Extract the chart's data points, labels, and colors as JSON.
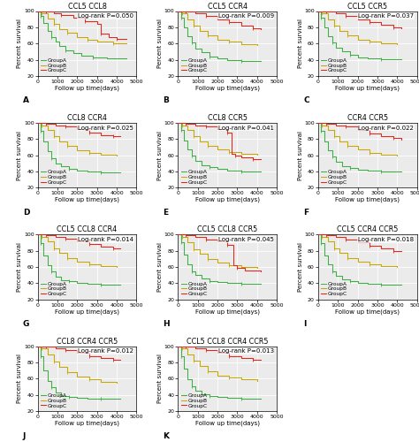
{
  "panels": [
    {
      "title": "CCL5 CCL8",
      "label": "A",
      "pval": "Log-rank P=0.050"
    },
    {
      "title": "CCL5 CCR4",
      "label": "B",
      "pval": "Log-rank P=0.009"
    },
    {
      "title": "CCL5 CCR5",
      "label": "C",
      "pval": "Log-rank P=0.037"
    },
    {
      "title": "CCL8 CCR4",
      "label": "D",
      "pval": "Log-rank P=0.025"
    },
    {
      "title": "CCL8 CCR5",
      "label": "E",
      "pval": "Log-rank P=0.041"
    },
    {
      "title": "CCR4 CCR5",
      "label": "F",
      "pval": "Log-rank P=0.022"
    },
    {
      "title": "CCL5 CCL8 CCR4",
      "label": "G",
      "pval": "Log-rank P=0.014"
    },
    {
      "title": "CCL5 CCL8 CCR5",
      "label": "H",
      "pval": "Log-rank P=0.045"
    },
    {
      "title": "CCL5 CCR4 CCR5",
      "label": "I",
      "pval": "Log-rank P=0.018"
    },
    {
      "title": "CCL8 CCR4 CCR5",
      "label": "J",
      "pval": "Log-rank P=0.012"
    },
    {
      "title": "CCL5 CCL8 CCR4 CCR5",
      "label": "K",
      "pval": "Log-rank P=0.013"
    }
  ],
  "group_A_color": "#3cb043",
  "group_B_color": "#c8a800",
  "group_C_color": "#e8251a",
  "bg_color": "#ebebeb",
  "grid_color": "#ffffff",
  "xlim": [
    0,
    5000
  ],
  "ylim": [
    20,
    100
  ],
  "xticks": [
    0,
    1000,
    2000,
    3000,
    4000,
    5000
  ],
  "yticks": [
    20,
    40,
    60,
    80,
    100
  ],
  "xlabel": "Follow up time(days)",
  "ylabel": "Percent survival",
  "curves": {
    "A": {
      "GroupA": {
        "x": [
          0,
          150,
          300,
          500,
          700,
          900,
          1100,
          1400,
          1800,
          2200,
          2800,
          3500,
          4500
        ],
        "y": [
          100,
          94,
          85,
          76,
          68,
          62,
          57,
          52,
          48,
          45,
          43,
          42,
          42
        ]
      },
      "GroupB": {
        "x": [
          0,
          200,
          500,
          800,
          1100,
          1500,
          2000,
          2500,
          3000,
          3800,
          4500
        ],
        "y": [
          100,
          97,
          91,
          84,
          78,
          73,
          68,
          65,
          62,
          60,
          60
        ]
      },
      "GroupC": {
        "x": [
          0,
          400,
          800,
          1200,
          1800,
          2400,
          3000,
          3200,
          3600,
          4000,
          4500
        ],
        "y": [
          100,
          99,
          97,
          95,
          92,
          88,
          84,
          72,
          68,
          66,
          66
        ]
      }
    },
    "B": {
      "GroupA": {
        "x": [
          0,
          150,
          300,
          500,
          700,
          900,
          1200,
          1600,
          2000,
          2500,
          3200,
          4200
        ],
        "y": [
          100,
          92,
          80,
          69,
          61,
          54,
          49,
          44,
          42,
          40,
          39,
          39
        ]
      },
      "GroupB": {
        "x": [
          0,
          200,
          500,
          800,
          1100,
          1500,
          2000,
          2600,
          3200,
          4000
        ],
        "y": [
          100,
          97,
          90,
          82,
          76,
          70,
          65,
          62,
          59,
          58
        ]
      },
      "GroupC": {
        "x": [
          0,
          400,
          900,
          1400,
          2000,
          2600,
          3200,
          3800,
          4200
        ],
        "y": [
          100,
          99,
          97,
          94,
          90,
          86,
          82,
          79,
          78
        ]
      }
    },
    "C": {
      "GroupA": {
        "x": [
          0,
          150,
          300,
          500,
          700,
          900,
          1200,
          1600,
          2000,
          2500,
          3200,
          4200
        ],
        "y": [
          100,
          92,
          80,
          69,
          61,
          55,
          50,
          46,
          43,
          42,
          41,
          41
        ]
      },
      "GroupB": {
        "x": [
          0,
          200,
          500,
          800,
          1100,
          1500,
          2000,
          2600,
          3200,
          4000
        ],
        "y": [
          100,
          97,
          90,
          82,
          76,
          70,
          65,
          62,
          60,
          59
        ]
      },
      "GroupC": {
        "x": [
          0,
          400,
          900,
          1400,
          2000,
          2600,
          3200,
          3800,
          4200
        ],
        "y": [
          100,
          99,
          97,
          94,
          90,
          86,
          83,
          80,
          79
        ]
      }
    },
    "D": {
      "GroupA": {
        "x": [
          0,
          150,
          300,
          500,
          700,
          900,
          1200,
          1600,
          2000,
          2500,
          3200,
          4200
        ],
        "y": [
          100,
          90,
          77,
          65,
          56,
          50,
          46,
          43,
          41,
          40,
          39,
          39
        ]
      },
      "GroupB": {
        "x": [
          0,
          200,
          500,
          800,
          1100,
          1500,
          2000,
          2600,
          3200,
          4000
        ],
        "y": [
          100,
          97,
          91,
          83,
          77,
          71,
          66,
          63,
          61,
          60
        ]
      },
      "GroupC": {
        "x": [
          0,
          400,
          900,
          1400,
          2000,
          2600,
          3200,
          3800,
          4200
        ],
        "y": [
          100,
          99,
          97,
          95,
          92,
          88,
          85,
          83,
          83
        ]
      }
    },
    "E": {
      "GroupA": {
        "x": [
          0,
          150,
          300,
          500,
          700,
          900,
          1200,
          1600,
          2000,
          2500,
          3200,
          4200
        ],
        "y": [
          100,
          91,
          78,
          67,
          59,
          53,
          48,
          45,
          43,
          41,
          40,
          40
        ]
      },
      "GroupB": {
        "x": [
          0,
          200,
          500,
          800,
          1100,
          1500,
          2000,
          2600,
          3200,
          4000
        ],
        "y": [
          100,
          97,
          91,
          83,
          77,
          72,
          67,
          64,
          62,
          61
        ]
      },
      "GroupC": {
        "x": [
          0,
          400,
          900,
          1400,
          2000,
          2500,
          2700,
          2900,
          3200,
          3800,
          4200
        ],
        "y": [
          100,
          99,
          97,
          95,
          92,
          88,
          62,
          59,
          57,
          55,
          55
        ]
      }
    },
    "F": {
      "GroupA": {
        "x": [
          0,
          150,
          300,
          500,
          700,
          900,
          1200,
          1600,
          2000,
          2500,
          3200,
          4200
        ],
        "y": [
          100,
          90,
          77,
          66,
          58,
          52,
          47,
          44,
          42,
          41,
          40,
          40
        ]
      },
      "GroupB": {
        "x": [
          0,
          200,
          500,
          800,
          1100,
          1500,
          2000,
          2600,
          3200,
          4000
        ],
        "y": [
          100,
          97,
          91,
          83,
          77,
          71,
          67,
          63,
          61,
          60
        ]
      },
      "GroupC": {
        "x": [
          0,
          400,
          900,
          1400,
          2000,
          2600,
          3200,
          3800,
          4200
        ],
        "y": [
          100,
          99,
          97,
          95,
          91,
          87,
          84,
          81,
          79
        ]
      }
    },
    "G": {
      "GroupA": {
        "x": [
          0,
          150,
          300,
          500,
          700,
          900,
          1200,
          1600,
          2000,
          2500,
          3200,
          4200
        ],
        "y": [
          100,
          89,
          74,
          62,
          54,
          48,
          44,
          42,
          40,
          39,
          38,
          38
        ]
      },
      "GroupB": {
        "x": [
          0,
          200,
          500,
          800,
          1100,
          1500,
          2000,
          2600,
          3200,
          4000
        ],
        "y": [
          100,
          97,
          91,
          83,
          77,
          71,
          66,
          63,
          61,
          60
        ]
      },
      "GroupC": {
        "x": [
          0,
          400,
          900,
          1400,
          2000,
          2600,
          3200,
          3800,
          4200
        ],
        "y": [
          100,
          99,
          97,
          95,
          92,
          88,
          85,
          83,
          83
        ]
      }
    },
    "H": {
      "GroupA": {
        "x": [
          0,
          150,
          300,
          500,
          700,
          900,
          1200,
          1600,
          2000,
          2500,
          3200,
          4200
        ],
        "y": [
          100,
          90,
          75,
          63,
          55,
          50,
          46,
          43,
          41,
          40,
          39,
          39
        ]
      },
      "GroupB": {
        "x": [
          0,
          200,
          500,
          800,
          1100,
          1500,
          2000,
          2600,
          3200,
          4000
        ],
        "y": [
          100,
          97,
          90,
          82,
          76,
          70,
          65,
          62,
          60,
          59
        ]
      },
      "GroupC": {
        "x": [
          0,
          400,
          900,
          1400,
          2000,
          2500,
          2800,
          3000,
          3400,
          4200
        ],
        "y": [
          100,
          99,
          97,
          94,
          91,
          87,
          62,
          59,
          56,
          55
        ]
      }
    },
    "I": {
      "GroupA": {
        "x": [
          0,
          150,
          300,
          500,
          700,
          900,
          1200,
          1600,
          2000,
          2500,
          3200,
          4200
        ],
        "y": [
          100,
          89,
          74,
          63,
          55,
          49,
          45,
          42,
          40,
          39,
          38,
          38
        ]
      },
      "GroupB": {
        "x": [
          0,
          200,
          500,
          800,
          1100,
          1500,
          2000,
          2600,
          3200,
          4000
        ],
        "y": [
          100,
          97,
          91,
          83,
          77,
          71,
          66,
          63,
          61,
          60
        ]
      },
      "GroupC": {
        "x": [
          0,
          400,
          900,
          1400,
          2000,
          2600,
          3200,
          3800,
          4200
        ],
        "y": [
          100,
          99,
          97,
          94,
          90,
          86,
          83,
          80,
          79
        ]
      }
    },
    "J": {
      "GroupA": {
        "x": [
          0,
          150,
          300,
          500,
          700,
          900,
          1200,
          1600,
          2000,
          2500,
          3200,
          4200
        ],
        "y": [
          100,
          87,
          70,
          57,
          49,
          43,
          39,
          37,
          36,
          35,
          35,
          35
        ]
      },
      "GroupB": {
        "x": [
          0,
          200,
          500,
          800,
          1100,
          1500,
          2000,
          2600,
          3200,
          4000
        ],
        "y": [
          100,
          97,
          90,
          81,
          74,
          68,
          63,
          59,
          56,
          55
        ]
      },
      "GroupC": {
        "x": [
          0,
          400,
          900,
          1400,
          2000,
          2600,
          3200,
          3800,
          4200
        ],
        "y": [
          100,
          99,
          97,
          95,
          92,
          88,
          85,
          83,
          83
        ]
      }
    },
    "K": {
      "GroupA": {
        "x": [
          0,
          150,
          300,
          500,
          700,
          900,
          1200,
          1600,
          2000,
          2500,
          3200,
          4200
        ],
        "y": [
          100,
          88,
          72,
          59,
          51,
          45,
          41,
          39,
          37,
          36,
          35,
          35
        ]
      },
      "GroupB": {
        "x": [
          0,
          200,
          500,
          800,
          1100,
          1500,
          2000,
          2600,
          3200,
          4000
        ],
        "y": [
          100,
          97,
          90,
          82,
          75,
          69,
          64,
          61,
          59,
          57
        ]
      },
      "GroupC": {
        "x": [
          0,
          400,
          900,
          1400,
          2000,
          2600,
          3200,
          3800,
          4200
        ],
        "y": [
          100,
          99,
          97,
          95,
          92,
          88,
          85,
          83,
          83
        ]
      }
    }
  },
  "title_fontsize": 5.8,
  "label_fontsize": 5.0,
  "tick_fontsize": 4.5,
  "legend_fontsize": 4.2,
  "pval_fontsize": 5.0,
  "panel_label_fontsize": 6.5
}
